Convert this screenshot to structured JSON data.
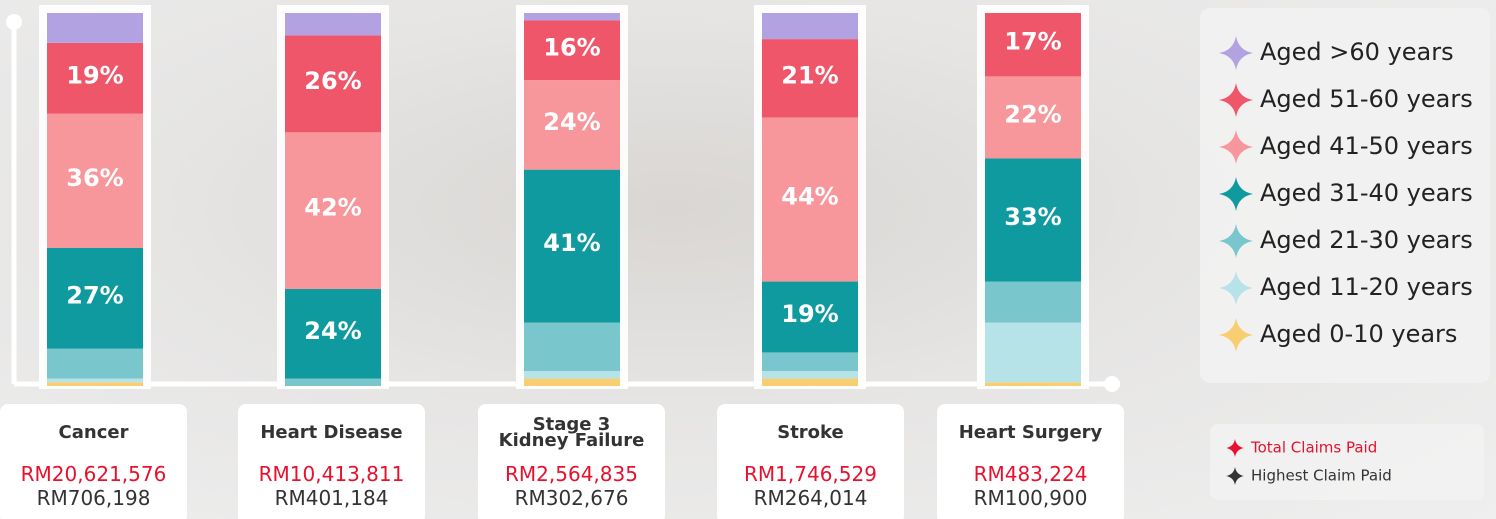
{
  "chart_data": {
    "type": "bar",
    "stacked": true,
    "ylim": [
      0,
      100
    ],
    "categories": [
      "Cancer",
      "Heart Disease",
      "Stage 3\nKidney Failure",
      "Stroke",
      "Heart Surgery"
    ],
    "series": [
      {
        "name": "Aged >60 years",
        "color": "#b3a2e2",
        "values": [
          8,
          6,
          2,
          7,
          0
        ],
        "value_labels": [
          null,
          null,
          null,
          null,
          null
        ]
      },
      {
        "name": "Aged 51-60 years",
        "color": "#f0566a",
        "values": [
          19,
          26,
          16,
          21,
          17
        ],
        "value_labels": [
          "19%",
          "26%",
          "16%",
          "21%",
          "17%"
        ]
      },
      {
        "name": "Aged 41-50 years",
        "color": "#f7979c",
        "values": [
          36,
          42,
          24,
          44,
          22
        ],
        "value_labels": [
          "36%",
          "42%",
          "24%",
          "44%",
          "22%"
        ]
      },
      {
        "name": "Aged 31-40 years",
        "color": "#0e9a9f",
        "values": [
          27,
          24,
          41,
          19,
          33
        ],
        "value_labels": [
          "27%",
          "24%",
          "41%",
          "19%",
          "33%"
        ]
      },
      {
        "name": "Aged 21-30 years",
        "color": "#79c7cd",
        "values": [
          8,
          2,
          13,
          5,
          11
        ],
        "value_labels": [
          null,
          null,
          null,
          null,
          null
        ]
      },
      {
        "name": "Aged 11-20 years",
        "color": "#b6e3e8",
        "values": [
          1,
          0,
          2,
          2,
          16
        ],
        "value_labels": [
          null,
          null,
          null,
          null,
          null
        ]
      },
      {
        "name": "Aged 0-10 years",
        "color": "#f7cf70",
        "values": [
          1,
          0,
          2,
          2,
          1
        ],
        "value_labels": [
          null,
          null,
          null,
          null,
          null
        ]
      }
    ],
    "claims": {
      "total": {
        "name": "Total Claims Paid",
        "color": "#e8112d",
        "labels": [
          "RM20,621,576",
          "RM10,413,811",
          "RM2,564,835",
          "RM1,746,529",
          "RM483,224"
        ]
      },
      "highest": {
        "name": "Highest Claim Paid",
        "color": "#333333",
        "labels": [
          "RM706,198",
          "RM401,184",
          "RM302,676",
          "RM264,014",
          "RM100,900"
        ]
      }
    }
  }
}
